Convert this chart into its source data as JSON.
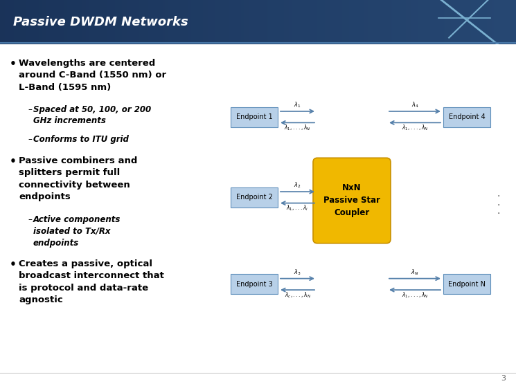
{
  "title": "Passive DWDM Networks",
  "title_color": "#ffffff",
  "header_bg": "#1e3a5c",
  "body_bg": "#ffffff",
  "bullet_color": "#000000",
  "diagram": {
    "endpoint_color": "#b8d0e8",
    "coupler_color": "#f0b800",
    "coupler_text": "NxN\nPassive Star\nCoupler",
    "endpoints_left": [
      "Endpoint 1",
      "Endpoint 2",
      "Endpoint 3"
    ],
    "endpoints_right": [
      "Endpoint 4",
      "Endpoint N"
    ],
    "arrow_color": "#5580aa",
    "dots": [
      ".",
      ".",
      "."
    ]
  },
  "page_number": "3"
}
